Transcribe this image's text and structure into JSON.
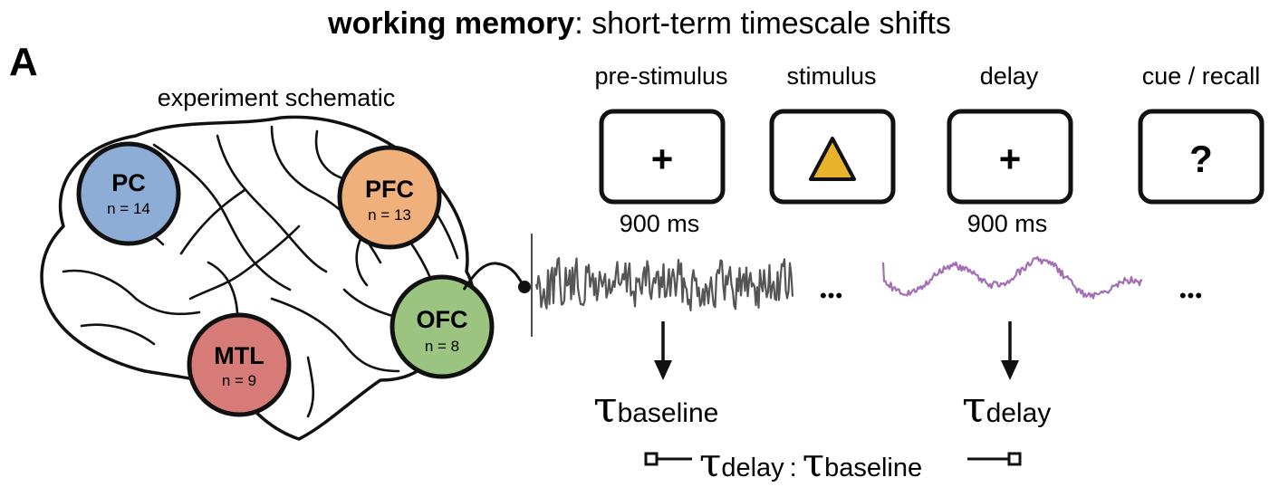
{
  "title": {
    "bold": "working memory",
    "rest": ": short-term timescale shifts"
  },
  "panel_label": "A",
  "schematic_label": "experiment schematic",
  "regions": [
    {
      "name": "PC",
      "n": "n = 14",
      "color": "#8eadd6"
    },
    {
      "name": "PFC",
      "n": "n = 13",
      "color": "#f0b07c"
    },
    {
      "name": "OFC",
      "n": "n = 8",
      "color": "#9ac47f"
    },
    {
      "name": "MTL",
      "n": "n = 9",
      "color": "#d67b78"
    }
  ],
  "phases": [
    {
      "label": "pre-stimulus",
      "symbol": "+",
      "duration": "900 ms"
    },
    {
      "label": "stimulus",
      "symbol": "triangle-icon",
      "duration": ""
    },
    {
      "label": "delay",
      "symbol": "+",
      "duration": "900 ms"
    },
    {
      "label": "cue / recall",
      "symbol": "?",
      "duration": ""
    }
  ],
  "traces": [
    {
      "color": "#555555"
    },
    {
      "color": "#a26fb4"
    }
  ],
  "ellipsis": "•••",
  "tau_symbol": "τ",
  "tau_baseline_sub": "baseline",
  "tau_delay_sub": "delay",
  "ratio": {
    "left_sub": "delay",
    "colon": ":",
    "right_sub": "baseline"
  },
  "stimulus_color": "#e8b22a"
}
